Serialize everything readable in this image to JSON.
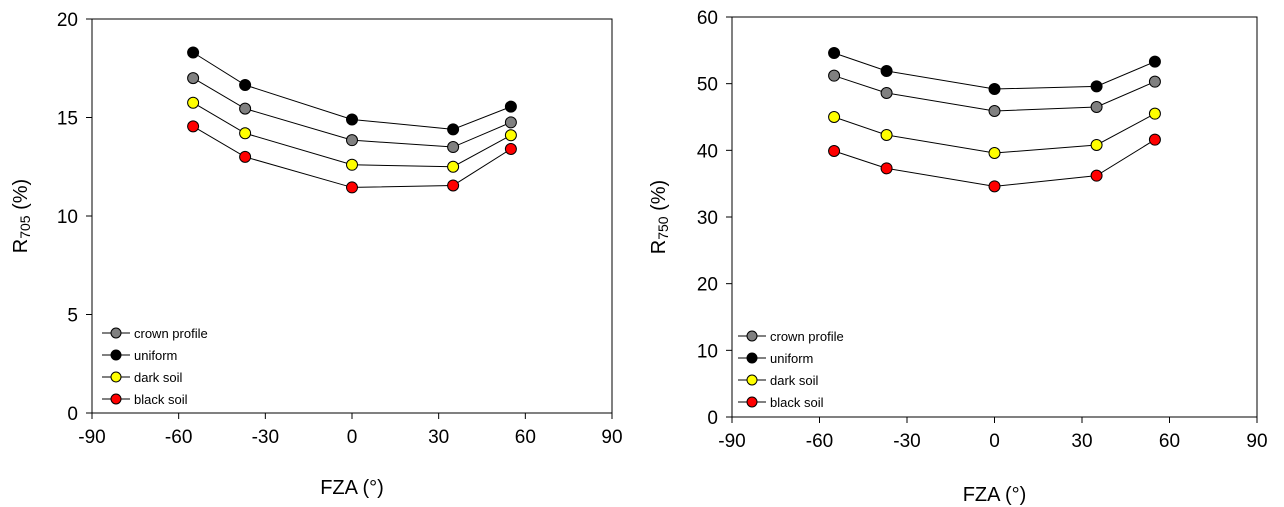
{
  "chart_data": [
    {
      "type": "line",
      "x": [
        -55,
        -37,
        0,
        35,
        55
      ],
      "xlabel": "FZA (°)",
      "ylabel_main": "R",
      "ylabel_sub": "705",
      "ylabel_unit": " (%)",
      "xlim": [
        -90,
        90
      ],
      "ylim": [
        0,
        20
      ],
      "xticks": [
        -90,
        -60,
        -30,
        0,
        30,
        60,
        90
      ],
      "yticks": [
        0,
        5,
        10,
        15,
        20
      ],
      "grid": false,
      "legend_position": "bottom-left",
      "series": [
        {
          "name": "crown profile",
          "color": "#808080",
          "values": [
            17.0,
            15.45,
            13.85,
            13.5,
            14.75
          ]
        },
        {
          "name": "uniform",
          "color": "#000000",
          "values": [
            18.3,
            16.65,
            14.9,
            14.4,
            15.55
          ]
        },
        {
          "name": "dark soil",
          "color": "#ffff00",
          "values": [
            15.75,
            14.2,
            12.6,
            12.5,
            14.1
          ]
        },
        {
          "name": "black soil",
          "color": "#ff0000",
          "values": [
            14.55,
            13.0,
            11.45,
            11.55,
            13.4
          ]
        }
      ]
    },
    {
      "type": "line",
      "x": [
        -55,
        -37,
        0,
        35,
        55
      ],
      "xlabel": "FZA (°)",
      "ylabel_main": "R",
      "ylabel_sub": "750",
      "ylabel_unit": " (%)",
      "xlim": [
        -90,
        90
      ],
      "ylim": [
        0,
        60
      ],
      "xticks": [
        -90,
        -60,
        -30,
        0,
        30,
        60,
        90
      ],
      "yticks": [
        0,
        10,
        20,
        30,
        40,
        50,
        60
      ],
      "grid": false,
      "legend_position": "bottom-left",
      "series": [
        {
          "name": "crown profile",
          "color": "#808080",
          "values": [
            51.2,
            48.6,
            45.9,
            46.5,
            50.3
          ]
        },
        {
          "name": "uniform",
          "color": "#000000",
          "values": [
            54.6,
            51.9,
            49.2,
            49.6,
            53.3
          ]
        },
        {
          "name": "dark soil",
          "color": "#ffff00",
          "values": [
            45.0,
            42.3,
            39.6,
            40.8,
            45.5
          ]
        },
        {
          "name": "black soil",
          "color": "#ff0000",
          "values": [
            39.9,
            37.3,
            34.6,
            36.2,
            41.6
          ]
        }
      ]
    }
  ]
}
